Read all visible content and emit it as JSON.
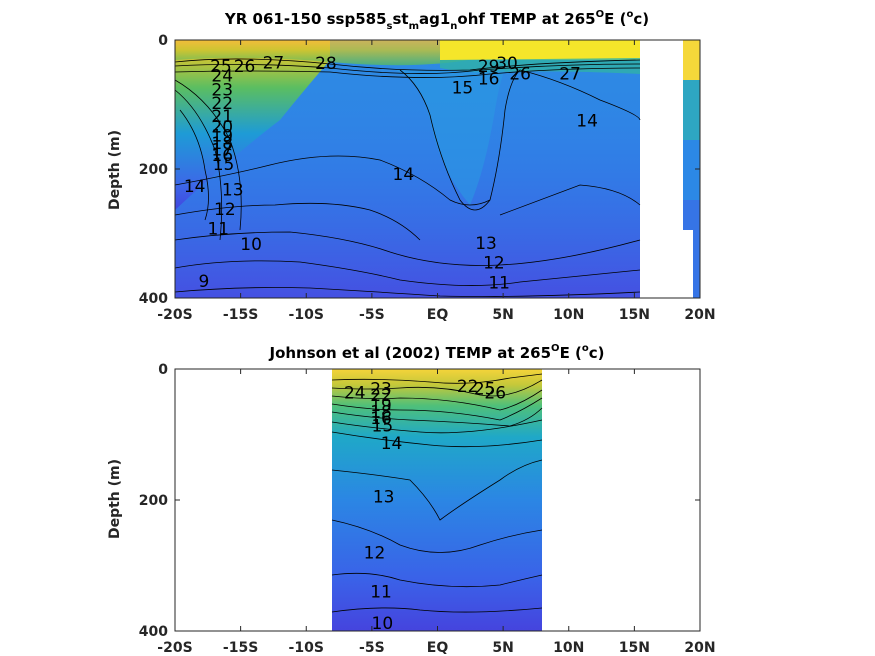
{
  "chart_data": [
    {
      "type": "heatmap",
      "title": {
        "prefix": "YR 061-150 ssp585",
        "sub1": "s",
        "mid1": "st",
        "sub2": "m",
        "mid2": "ag1",
        "sub3": "n",
        "suffix_text": "ohf TEMP at 265",
        "deg1": "O",
        "unit_open": "E (",
        "deg2": "o",
        "unit_close": "c)"
      },
      "ylabel": "Depth (m)",
      "x_ticks": [
        "-20S",
        "-15S",
        "-10S",
        "-5S",
        "EQ",
        "5N",
        "10N",
        "15N",
        "20N"
      ],
      "y_ticks": [
        "0",
        "200",
        "400"
      ],
      "xlim": [
        -20,
        20
      ],
      "ylim": [
        0,
        400
      ],
      "data_extent_lat": [
        -20,
        15.5
      ],
      "contour_labels": [
        {
          "text": "28",
          "lat": -8.5,
          "depth": 36
        },
        {
          "text": "27",
          "lat": -12.5,
          "depth": 35
        },
        {
          "text": "26",
          "lat": -14.7,
          "depth": 40
        },
        {
          "text": "25",
          "lat": -16.5,
          "depth": 40
        },
        {
          "text": "24",
          "lat": -16.4,
          "depth": 55
        },
        {
          "text": "23",
          "lat": -16.4,
          "depth": 77
        },
        {
          "text": "22",
          "lat": -16.4,
          "depth": 98
        },
        {
          "text": "21",
          "lat": -16.4,
          "depth": 118
        },
        {
          "text": "20",
          "lat": -16.4,
          "depth": 134
        },
        {
          "text": "19",
          "lat": -16.4,
          "depth": 148
        },
        {
          "text": "18",
          "lat": -16.4,
          "depth": 160
        },
        {
          "text": "17",
          "lat": -16.4,
          "depth": 170
        },
        {
          "text": "16",
          "lat": -16.4,
          "depth": 178
        },
        {
          "text": "15",
          "lat": -16.3,
          "depth": 192
        },
        {
          "text": "14",
          "lat": -18.5,
          "depth": 226
        },
        {
          "text": "13",
          "lat": -15.6,
          "depth": 232
        },
        {
          "text": "12",
          "lat": -16.2,
          "depth": 262
        },
        {
          "text": "11",
          "lat": -16.7,
          "depth": 292
        },
        {
          "text": "10",
          "lat": -14.2,
          "depth": 316
        },
        {
          "text": "9",
          "lat": -17.8,
          "depth": 374
        },
        {
          "text": "14",
          "lat": -2.6,
          "depth": 208
        },
        {
          "text": "15",
          "lat": 1.9,
          "depth": 74
        },
        {
          "text": "16",
          "lat": 3.9,
          "depth": 60
        },
        {
          "text": "29",
          "lat": 3.9,
          "depth": 40
        },
        {
          "text": "30",
          "lat": 5.3,
          "depth": 36
        },
        {
          "text": "26",
          "lat": 6.3,
          "depth": 52
        },
        {
          "text": "27",
          "lat": 10.1,
          "depth": 52
        },
        {
          "text": "14",
          "lat": 11.4,
          "depth": 125
        },
        {
          "text": "13",
          "lat": 3.7,
          "depth": 315
        },
        {
          "text": "12",
          "lat": 4.3,
          "depth": 345
        },
        {
          "text": "11",
          "lat": 4.7,
          "depth": 376
        }
      ]
    },
    {
      "type": "heatmap",
      "title": {
        "prefix": "Johnson et al (2002) TEMP at 265",
        "deg1": "O",
        "unit_open": "E (",
        "deg2": "o",
        "unit_close": "c)"
      },
      "ylabel": "Depth (m)",
      "x_ticks": [
        "-20S",
        "-15S",
        "-10S",
        "-5S",
        "EQ",
        "5N",
        "10N",
        "15N",
        "20N"
      ],
      "y_ticks": [
        "0",
        "200",
        "400"
      ],
      "xlim": [
        -20,
        20
      ],
      "ylim": [
        0,
        400
      ],
      "data_extent_lat": [
        -8,
        8
      ],
      "contour_labels": [
        {
          "text": "24",
          "lat": -6.3,
          "depth": 36
        },
        {
          "text": "23",
          "lat": -4.3,
          "depth": 30
        },
        {
          "text": "22",
          "lat": -4.3,
          "depth": 40
        },
        {
          "text": "19",
          "lat": -4.3,
          "depth": 55
        },
        {
          "text": "18",
          "lat": -4.3,
          "depth": 65
        },
        {
          "text": "16",
          "lat": -4.3,
          "depth": 75
        },
        {
          "text": "15",
          "lat": -4.2,
          "depth": 86
        },
        {
          "text": "14",
          "lat": -3.5,
          "depth": 113
        },
        {
          "text": "13",
          "lat": -4.1,
          "depth": 195
        },
        {
          "text": "12",
          "lat": -4.8,
          "depth": 280
        },
        {
          "text": "11",
          "lat": -4.3,
          "depth": 340
        },
        {
          "text": "10",
          "lat": -4.2,
          "depth": 388
        },
        {
          "text": "22",
          "lat": 2.3,
          "depth": 26
        },
        {
          "text": "25",
          "lat": 3.6,
          "depth": 30
        },
        {
          "text": "26",
          "lat": 4.4,
          "depth": 36
        }
      ]
    }
  ]
}
